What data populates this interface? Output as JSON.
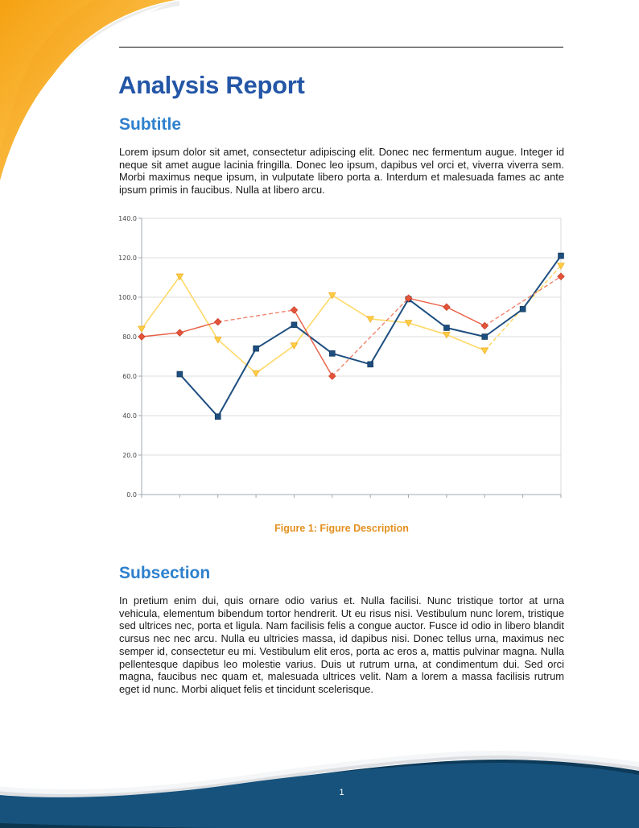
{
  "header": {
    "title": "Analysis Report",
    "subtitle": "Subtitle"
  },
  "intro_paragraph": "Lorem ipsum dolor sit amet, consectetur adipiscing elit. Donec nec fermentum augue. Integer id neque sit amet augue lacinia fringilla. Donec leo ipsum, dapibus vel orci et, viverra viverra sem. Morbi maximus neque ipsum, in vulputate libero porta a. Interdum et malesuada fames ac ante ipsum primis in faucibus. Nulla at libero arcu.",
  "figure": {
    "caption": "Figure 1: Figure Description"
  },
  "subsection": {
    "title": "Subsection",
    "body": "In pretium enim dui, quis ornare odio varius et. Nulla facilisi. Nunc tristique tortor at urna vehicula, elementum bibendum tortor hendrerit. Ut eu risus nisi. Vestibulum nunc lorem, tristique sed ultrices nec, porta et ligula. Nam facilisis felis a congue auctor. Fusce id odio in libero blandit cursus nec nec arcu. Nulla eu ultricies massa, id dapibus nisi. Donec tellus urna, maximus nec semper id, consectetur eu mi. Vestibulum elit eros, porta ac eros a, mattis pulvinar magna. Nulla pellentesque dapibus leo molestie varius. Duis ut rutrum urna, at condimentum dui. Sed orci magna, faucibus nec quam et, malesuada ultrices velit. Nam a lorem a massa facilisis rutrum eget id nunc. Morbi aliquet felis et tincidunt scelerisque.",
    "hyphenated_line_breaks": [
      "tris-tique",
      "max-imus"
    ]
  },
  "footer": {
    "page_number": "1",
    "wave_color": "#16527c",
    "wave_dark_color": "#0d3a58",
    "shadow_color": "#c9ccd1"
  },
  "decor_colors": {
    "corner_orange_deep": "#f49d0c",
    "corner_orange_light": "#ffd06a",
    "title_blue": "#2456a6",
    "heading_blue": "#2e80cd",
    "caption_orange": "#e3901f"
  },
  "chart_data": {
    "type": "line",
    "title": "",
    "xlabel": "",
    "ylabel": "",
    "x_count": 12,
    "x_labels_visible": false,
    "ylim": [
      0,
      140
    ],
    "grid": "horizontal",
    "legend": "none",
    "missing_data_style": "dashed interpolation across gaps",
    "yticks": [
      {
        "v": 0,
        "label": "0.0"
      },
      {
        "v": 20,
        "label": "20.0"
      },
      {
        "v": 40,
        "label": "40.0"
      },
      {
        "v": 60,
        "label": "60.0"
      },
      {
        "v": 80,
        "label": "80.0"
      },
      {
        "v": 100,
        "label": "100.0"
      },
      {
        "v": 120,
        "label": "120.0"
      },
      {
        "v": 140,
        "label": "140.0"
      }
    ],
    "series": [
      {
        "name": "yellow-series",
        "marker": "triangle-down",
        "line_color": "#ffd968",
        "marker_fill": "#ffcf43",
        "marker_stroke": "#efae2f",
        "line_width": 1.6,
        "values": [
          84,
          110.5,
          78.5,
          61.5,
          75.5,
          101,
          89,
          87,
          81,
          73,
          null,
          116
        ]
      },
      {
        "name": "blue-series",
        "marker": "square",
        "line_color": "#1d4e80",
        "marker_fill": "#1d4e80",
        "marker_stroke": "#163c5e",
        "line_width": 2,
        "values": [
          null,
          61,
          39.5,
          74,
          86,
          71.5,
          66,
          99,
          84.5,
          80,
          94,
          121
        ]
      },
      {
        "name": "red-series",
        "marker": "diamond",
        "line_color": "#e85c42",
        "dash_color": "#f0836b",
        "marker_fill": "#e4543b",
        "marker_stroke": "#c8402b",
        "line_width": 1.4,
        "values": [
          80,
          82,
          87.5,
          null,
          93.5,
          60,
          null,
          99.5,
          95,
          85.5,
          null,
          110.5
        ]
      }
    ],
    "axis_color": "#9fa8b0",
    "grid_color": "#dcdcdc",
    "frame_color": "#d8d8d8",
    "tick_label_color": "#444444"
  }
}
